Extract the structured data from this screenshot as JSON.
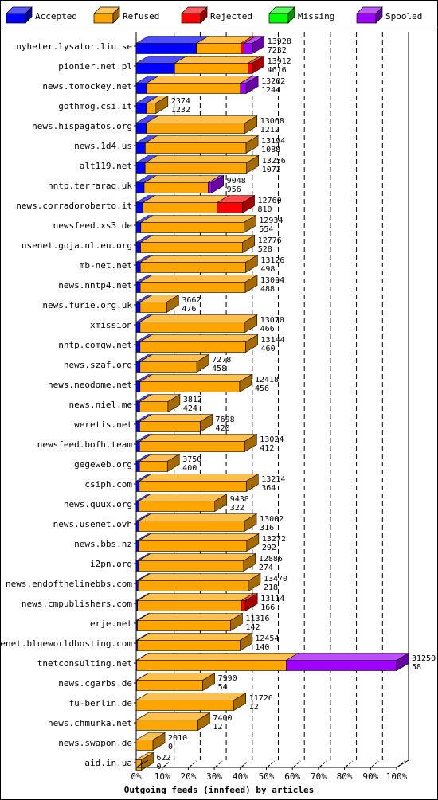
{
  "chart_data": {
    "type": "bar",
    "stacked": true,
    "orientation": "horizontal",
    "title": "Outgoing feeds (innfeed) by articles",
    "xlabel": "Outgoing feeds (innfeed) by articles",
    "xlim": [
      0,
      100
    ],
    "x_unit": "%",
    "x_ticks": [
      "0%",
      "10%",
      "20%",
      "30%",
      "40%",
      "50%",
      "60%",
      "70%",
      "80%",
      "90%",
      "100%"
    ],
    "grid": "vertical dashed lines at each 10%",
    "legend_position": "top",
    "legend": [
      {
        "name": "Accepted",
        "color": "#0000ff"
      },
      {
        "name": "Refused",
        "color": "#ffa500"
      },
      {
        "name": "Rejected",
        "color": "#ff0000"
      },
      {
        "name": "Missing",
        "color": "#00ff00"
      },
      {
        "name": "Spooled",
        "color": "#a000ff"
      }
    ],
    "bar_scale_max": 31250,
    "rows": [
      {
        "name": "nyheter.lysator.liu.se",
        "total": "13928",
        "accepted": "7232",
        "segments": [
          7232,
          5320,
          376,
          0,
          1000
        ]
      },
      {
        "name": "pionier.net.pl",
        "total": "13912",
        "accepted": "4616",
        "segments": [
          4616,
          8796,
          500,
          0,
          0
        ]
      },
      {
        "name": "news.tomockey.net",
        "total": "13202",
        "accepted": "1244",
        "segments": [
          1244,
          11258,
          0,
          0,
          700
        ]
      },
      {
        "name": "gothmog.csi.it",
        "total": "2374",
        "accepted": "1232",
        "segments": [
          1232,
          1142,
          0,
          0,
          0
        ]
      },
      {
        "name": "news.hispagatos.org",
        "total": "13068",
        "accepted": "1212",
        "segments": [
          1212,
          11856,
          0,
          0,
          0
        ]
      },
      {
        "name": "news.1d4.us",
        "total": "13194",
        "accepted": "1088",
        "segments": [
          1088,
          12106,
          0,
          0,
          0
        ]
      },
      {
        "name": "alt119.net",
        "total": "13256",
        "accepted": "1072",
        "segments": [
          1072,
          12184,
          0,
          0,
          0
        ]
      },
      {
        "name": "nntp.terraraq.uk",
        "total": "9048",
        "accepted": "956",
        "segments": [
          956,
          7692,
          0,
          0,
          400
        ]
      },
      {
        "name": "news.corradoroberto.it",
        "total": "12760",
        "accepted": "810",
        "segments": [
          810,
          8900,
          3050,
          0,
          0
        ]
      },
      {
        "name": "newsfeed.xs3.de",
        "total": "12934",
        "accepted": "554",
        "segments": [
          554,
          12380,
          0,
          0,
          0
        ]
      },
      {
        "name": "usenet.goja.nl.eu.org",
        "total": "12776",
        "accepted": "528",
        "segments": [
          528,
          12248,
          0,
          0,
          0
        ]
      },
      {
        "name": "mb-net.net",
        "total": "13126",
        "accepted": "498",
        "segments": [
          498,
          12628,
          0,
          0,
          0
        ]
      },
      {
        "name": "news.nntp4.net",
        "total": "13094",
        "accepted": "488",
        "segments": [
          488,
          12606,
          0,
          0,
          0
        ]
      },
      {
        "name": "news.furie.org.uk",
        "total": "3662",
        "accepted": "476",
        "segments": [
          476,
          3186,
          0,
          0,
          0
        ]
      },
      {
        "name": "xmission",
        "total": "13070",
        "accepted": "466",
        "segments": [
          466,
          12604,
          0,
          0,
          0
        ]
      },
      {
        "name": "nntp.comgw.net",
        "total": "13144",
        "accepted": "460",
        "segments": [
          460,
          12684,
          0,
          0,
          0
        ]
      },
      {
        "name": "news.szaf.org",
        "total": "7278",
        "accepted": "458",
        "segments": [
          458,
          6820,
          0,
          0,
          0
        ]
      },
      {
        "name": "news.neodome.net",
        "total": "12418",
        "accepted": "456",
        "segments": [
          456,
          11962,
          0,
          0,
          0
        ]
      },
      {
        "name": "news.niel.me",
        "total": "3812",
        "accepted": "424",
        "segments": [
          424,
          3388,
          0,
          0,
          0
        ]
      },
      {
        "name": "weretis.net",
        "total": "7698",
        "accepted": "420",
        "segments": [
          420,
          7278,
          0,
          0,
          0
        ]
      },
      {
        "name": "newsfeed.bofh.team",
        "total": "13024",
        "accepted": "412",
        "segments": [
          412,
          12612,
          0,
          0,
          0
        ]
      },
      {
        "name": "gegeweb.org",
        "total": "3750",
        "accepted": "400",
        "segments": [
          400,
          3350,
          0,
          0,
          0
        ]
      },
      {
        "name": "csiph.com",
        "total": "13214",
        "accepted": "364",
        "segments": [
          364,
          12850,
          0,
          0,
          0
        ]
      },
      {
        "name": "news.quux.org",
        "total": "9438",
        "accepted": "322",
        "segments": [
          322,
          9116,
          0,
          0,
          0
        ]
      },
      {
        "name": "news.usenet.ovh",
        "total": "13002",
        "accepted": "316",
        "segments": [
          316,
          12686,
          0,
          0,
          0
        ]
      },
      {
        "name": "news.bbs.nz",
        "total": "13272",
        "accepted": "292",
        "segments": [
          292,
          12980,
          0,
          0,
          0
        ]
      },
      {
        "name": "i2pn.org",
        "total": "12886",
        "accepted": "274",
        "segments": [
          274,
          12612,
          0,
          0,
          0
        ]
      },
      {
        "name": "news.endofthelinebbs.com",
        "total": "13470",
        "accepted": "218",
        "segments": [
          218,
          13252,
          0,
          0,
          0
        ]
      },
      {
        "name": "news.cmpublishers.com",
        "total": "13114",
        "accepted": "166",
        "segments": [
          166,
          12448,
          500,
          0,
          0
        ]
      },
      {
        "name": "erje.net",
        "total": "11316",
        "accepted": "142",
        "segments": [
          142,
          11174,
          0,
          0,
          0
        ]
      },
      {
        "name": "usenet.blueworldhosting.com",
        "total": "12454",
        "accepted": "140",
        "segments": [
          140,
          12314,
          0,
          0,
          0
        ]
      },
      {
        "name": "tnetconsulting.net",
        "total": "31250",
        "accepted": "58",
        "segments": [
          58,
          17942,
          0,
          0,
          13250
        ]
      },
      {
        "name": "news.cgarbs.de",
        "total": "7990",
        "accepted": "54",
        "segments": [
          54,
          7936,
          0,
          0,
          0
        ]
      },
      {
        "name": "fu-berlin.de",
        "total": "11726",
        "accepted": "12",
        "segments": [
          12,
          11714,
          0,
          0,
          0
        ]
      },
      {
        "name": "news.chmurka.net",
        "total": "7400",
        "accepted": "12",
        "segments": [
          12,
          7388,
          0,
          0,
          0
        ]
      },
      {
        "name": "news.swapon.de",
        "total": "2010",
        "accepted": "0",
        "segments": [
          0,
          2010,
          0,
          0,
          0
        ]
      },
      {
        "name": "aid.in.ua",
        "total": "622",
        "accepted": "0",
        "segments": [
          0,
          622,
          0,
          0,
          0
        ]
      }
    ],
    "cap_colors": [
      "#0000ff",
      "#ffa500",
      "#ff0000",
      "#00ff00",
      "#a000ff",
      "#b8860b"
    ]
  }
}
